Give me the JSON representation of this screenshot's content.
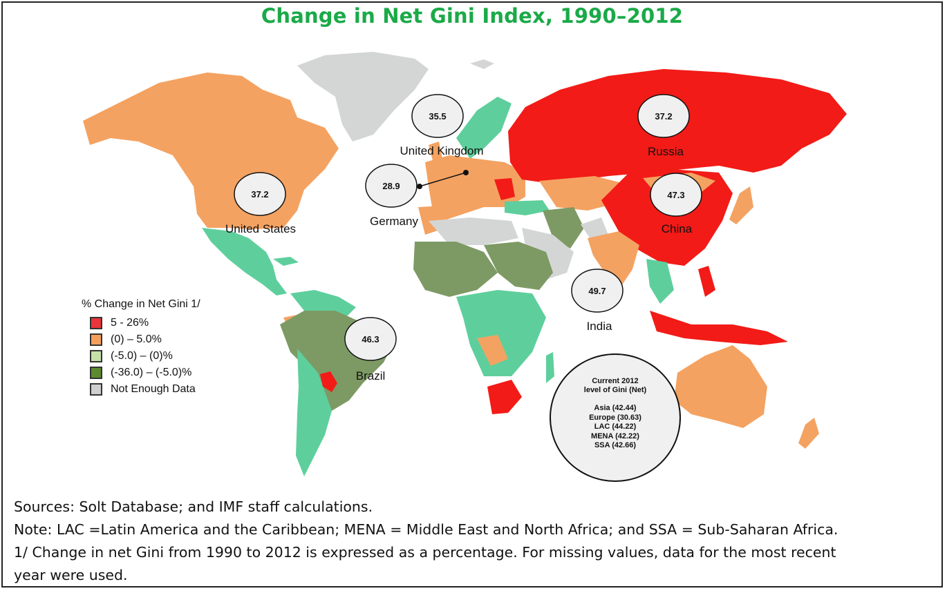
{
  "title": "Change in Net Gini Index, 1990–2012",
  "colors": {
    "red": "#f21b17",
    "orange": "#f4a261",
    "light_green": "#5ecf9c",
    "dark_green": "#7d9a64",
    "gray": "#d4d6d6",
    "title_green": "#1aaa48"
  },
  "legend": {
    "title": "% Change in Net Gini 1/",
    "items": [
      {
        "label": "5 - 26%",
        "color": "#e8343a"
      },
      {
        "label": "(0) – 5.0%",
        "color": "#f5a05a"
      },
      {
        "label": "(-5.0) – (0)%",
        "color": "#c6e0a8"
      },
      {
        "label": "(-36.0) – (-5.0)%",
        "color": "#5d8a2e"
      },
      {
        "label": "Not Enough Data",
        "color": "#cfcfcf"
      }
    ]
  },
  "countries": {
    "united_states": {
      "name": "United States",
      "value": "37.2"
    },
    "united_kingdom": {
      "name": "United Kingdom",
      "value": "35.5"
    },
    "germany": {
      "name": "Germany",
      "value": "28.9"
    },
    "russia": {
      "name": "Russia",
      "value": "37.2"
    },
    "china": {
      "name": "China",
      "value": "47.3"
    },
    "india": {
      "name": "India",
      "value": "49.7"
    },
    "brazil": {
      "name": "Brazil",
      "value": "46.3"
    }
  },
  "regional_summary": {
    "heading_line1": "Current 2012",
    "heading_line2": "level of Gini (Net)",
    "rows": [
      "Asia (42.44)",
      "Europe (30.63)",
      "LAC (44.22)",
      "MENA (42.22)",
      "SSA (42.66)"
    ]
  },
  "footer": {
    "sources": "Sources: Solt Database; and IMF staff calculations.",
    "note": "Note: LAC =Latin America and the Caribbean; MENA = Middle East and North Africa; and SSA = Sub-Saharan Africa.",
    "footnote_line1": "1/ Change in net Gini from 1990 to 2012 is expressed as a percentage. For missing values, data for the most recent",
    "footnote_line2": "year were used."
  }
}
